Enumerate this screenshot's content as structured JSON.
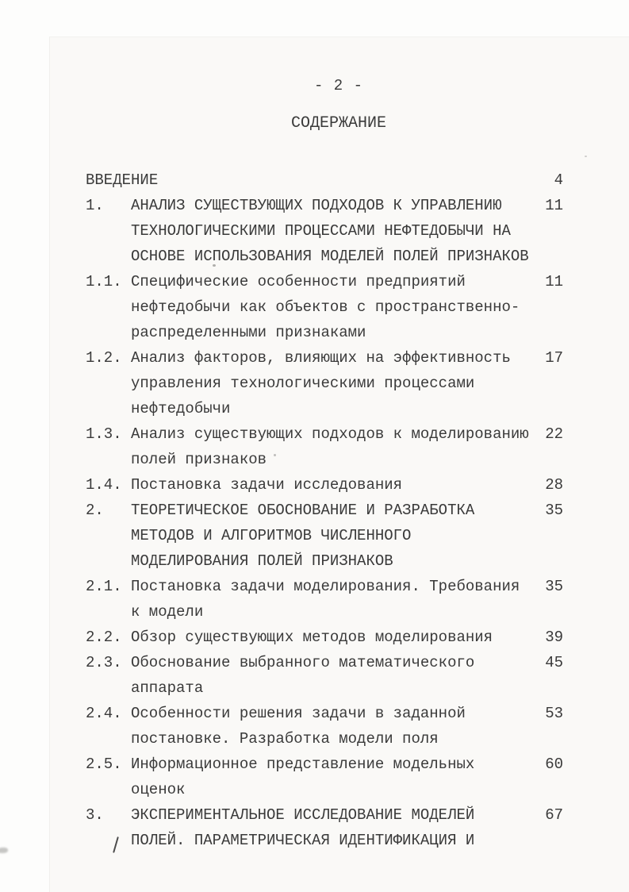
{
  "document": {
    "kind": "scanned-typewritten-page",
    "language": "ru",
    "header_page_number": "- 2 -",
    "toc_title": "СОДЕРЖАНИЕ",
    "handwritten_mark": "/",
    "colors": {
      "paper": "#faf9f7",
      "ink": "#3a3a3a"
    },
    "toc": {
      "entries": [
        {
          "num": "",
          "lines": [
            "ВВЕДЕНИЕ"
          ],
          "page": "4"
        },
        {
          "num": "1.",
          "lines": [
            "АНАЛИЗ СУЩЕСТВУЮЩИХ ПОДХОДОВ К УПРАВЛЕНИЮ",
            "ТЕХНОЛОГИЧЕСКИМИ ПРОЦЕССАМИ НЕФТЕДОБЫЧИ НА",
            "ОСНОВЕ ИСПОЛЬЗОВАНИЯ МОДЕЛЕЙ ПОЛЕЙ ПРИЗНАКОВ"
          ],
          "page": "11"
        },
        {
          "num": "1.1.",
          "lines": [
            "Специфические особенности предприятий",
            "нефтедобычи как объектов с пространственно-",
            "распределенными признаками"
          ],
          "page": "11"
        },
        {
          "num": "1.2.",
          "lines": [
            "Анализ факторов, влияющих на эффективность",
            "управления технологическими процессами",
            "нефтедобычи"
          ],
          "page": "17"
        },
        {
          "num": "1.3.",
          "lines": [
            "Анализ существующих подходов к моделированию",
            "полей признаков"
          ],
          "page": "22"
        },
        {
          "num": "1.4.",
          "lines": [
            "Постановка задачи исследования"
          ],
          "page": "28"
        },
        {
          "num": "2.",
          "lines": [
            "ТЕОРЕТИЧЕСКОЕ ОБОСНОВАНИЕ И РАЗРАБОТКА",
            "МЕТОДОВ И АЛГОРИТМОВ ЧИСЛЕННОГО",
            "МОДЕЛИРОВАНИЯ ПОЛЕЙ ПРИЗНАКОВ"
          ],
          "page": "35"
        },
        {
          "num": "2.1.",
          "lines": [
            "Постановка задачи моделирования. Требования",
            "к модели"
          ],
          "page": "35"
        },
        {
          "num": "2.2.",
          "lines": [
            "Обзор существующих методов моделирования"
          ],
          "page": "39"
        },
        {
          "num": "2.3.",
          "lines": [
            "Обоснование выбранного математического",
            "аппарата"
          ],
          "page": "45"
        },
        {
          "num": "2.4.",
          "lines": [
            "Особенности решения задачи в заданной",
            "постановке. Разработка модели поля"
          ],
          "page": "53"
        },
        {
          "num": "2.5.",
          "lines": [
            "Информационное представление модельных",
            "оценок"
          ],
          "page": "60"
        },
        {
          "num": "3.",
          "lines": [
            "ЭКСПЕРИМЕНТАЛЬНОЕ ИССЛЕДОВАНИЕ МОДЕЛЕЙ",
            "ПОЛЕЙ. ПАРАМЕТРИЧЕСКАЯ ИДЕНТИФИКАЦИЯ И"
          ],
          "page": "67"
        }
      ]
    }
  }
}
